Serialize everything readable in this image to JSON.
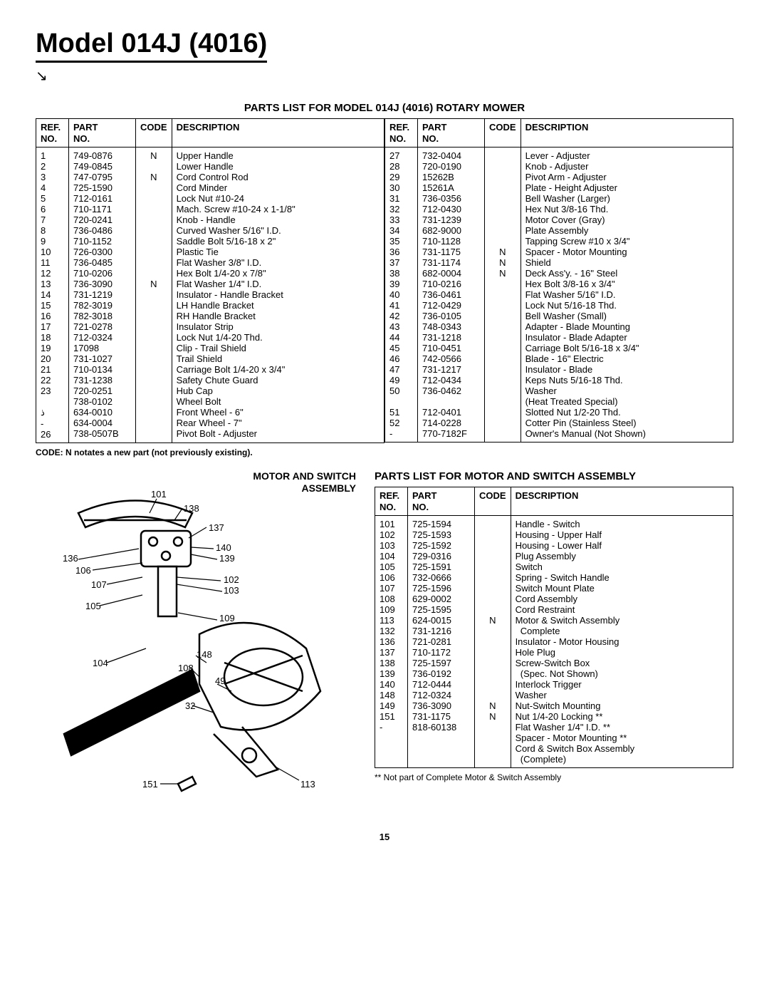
{
  "title": "Model 014J (4016)",
  "mainTableCaption": "PARTS LIST FOR MODEL 014J (4016) ROTARY MOWER",
  "headers": {
    "ref": "REF.\nNO.",
    "part": "PART\nNO.",
    "code": "CODE",
    "desc": "DESCRIPTION"
  },
  "mainLeft": [
    {
      "r": "1",
      "p": "749-0876",
      "c": "N",
      "d": "Upper Handle"
    },
    {
      "r": "2",
      "p": "749-0845",
      "c": "",
      "d": "Lower Handle"
    },
    {
      "r": "3",
      "p": "747-0795",
      "c": "N",
      "d": "Cord Control Rod"
    },
    {
      "r": "4",
      "p": "725-1590",
      "c": "",
      "d": "Cord Minder"
    },
    {
      "r": "5",
      "p": "712-0161",
      "c": "",
      "d": "Lock Nut #10-24"
    },
    {
      "r": "6",
      "p": "710-1171",
      "c": "",
      "d": "Mach. Screw #10-24 x 1-1/8\""
    },
    {
      "r": "7",
      "p": "720-0241",
      "c": "",
      "d": "Knob - Handle"
    },
    {
      "r": "8",
      "p": "736-0486",
      "c": "",
      "d": "Curved Washer 5/16\" I.D."
    },
    {
      "r": "9",
      "p": "710-1152",
      "c": "",
      "d": "Saddle Bolt 5/16-18 x 2\""
    },
    {
      "r": "10",
      "p": "726-0300",
      "c": "",
      "d": "Plastic Tie"
    },
    {
      "r": "11",
      "p": "736-0485",
      "c": "",
      "d": "Flat Washer 3/8\" I.D."
    },
    {
      "r": "12",
      "p": "710-0206",
      "c": "",
      "d": "Hex Bolt 1/4-20 x 7/8\""
    },
    {
      "r": "13",
      "p": "736-3090",
      "c": "N",
      "d": "Flat Washer 1/4\" I.D."
    },
    {
      "r": "14",
      "p": "731-1219",
      "c": "",
      "d": "Insulator - Handle Bracket"
    },
    {
      "r": "15",
      "p": "782-3019",
      "c": "",
      "d": "LH Handle Bracket"
    },
    {
      "r": "16",
      "p": "782-3018",
      "c": "",
      "d": "RH Handle Bracket"
    },
    {
      "r": "17",
      "p": "721-0278",
      "c": "",
      "d": "Insulator Strip"
    },
    {
      "r": "18",
      "p": "712-0324",
      "c": "",
      "d": "Lock Nut 1/4-20 Thd."
    },
    {
      "r": "19",
      "p": "17098",
      "c": "",
      "d": "Clip - Trail Shield"
    },
    {
      "r": "20",
      "p": "731-1027",
      "c": "",
      "d": "Trail Shield"
    },
    {
      "r": "21",
      "p": "710-0134",
      "c": "",
      "d": "Carriage Bolt 1/4-20 x 3/4\""
    },
    {
      "r": "22",
      "p": "731-1238",
      "c": "",
      "d": "Safety Chute Guard"
    },
    {
      "r": "23",
      "p": "720-0251",
      "c": "",
      "d": "Hub Cap"
    },
    {
      "r": "",
      "p": "738-0102",
      "c": "",
      "d": "Wheel Bolt"
    },
    {
      "r": "ذ",
      "p": "634-0010",
      "c": "",
      "d": "Front Wheel - 6\""
    },
    {
      "r": "-",
      "p": "634-0004",
      "c": "",
      "d": "Rear Wheel - 7\""
    },
    {
      "r": "26",
      "p": "738-0507B",
      "c": "",
      "d": "Pivot Bolt - Adjuster"
    }
  ],
  "mainRight": [
    {
      "r": "27",
      "p": "732-0404",
      "c": "",
      "d": "Lever - Adjuster"
    },
    {
      "r": "28",
      "p": "720-0190",
      "c": "",
      "d": "Knob - Adjuster"
    },
    {
      "r": "29",
      "p": "15262B",
      "c": "",
      "d": "Pivot Arm - Adjuster"
    },
    {
      "r": "30",
      "p": "15261A",
      "c": "",
      "d": "Plate - Height Adjuster"
    },
    {
      "r": "31",
      "p": "736-0356",
      "c": "",
      "d": "Bell Washer (Larger)"
    },
    {
      "r": "32",
      "p": "712-0430",
      "c": "",
      "d": "Hex Nut 3/8-16 Thd."
    },
    {
      "r": "33",
      "p": "731-1239",
      "c": "",
      "d": "Motor Cover (Gray)"
    },
    {
      "r": "34",
      "p": "682-9000",
      "c": "",
      "d": "Plate Assembly"
    },
    {
      "r": "35",
      "p": "710-1128",
      "c": "",
      "d": "Tapping Screw #10 x 3/4\""
    },
    {
      "r": "36",
      "p": "731-1175",
      "c": "N",
      "d": "Spacer - Motor Mounting"
    },
    {
      "r": "37",
      "p": "731-1174",
      "c": "N",
      "d": "Shield"
    },
    {
      "r": "38",
      "p": "682-0004",
      "c": "N",
      "d": "Deck Ass'y. - 16\" Steel"
    },
    {
      "r": "39",
      "p": "710-0216",
      "c": "",
      "d": "Hex Bolt 3/8-16 x 3/4\""
    },
    {
      "r": "40",
      "p": "736-0461",
      "c": "",
      "d": "Flat Washer 5/16\" I.D."
    },
    {
      "r": "41",
      "p": "712-0429",
      "c": "",
      "d": "Lock Nut 5/16-18 Thd."
    },
    {
      "r": "42",
      "p": "736-0105",
      "c": "",
      "d": "Bell Washer (Small)"
    },
    {
      "r": "43",
      "p": "748-0343",
      "c": "",
      "d": "Adapter - Blade Mounting"
    },
    {
      "r": "44",
      "p": "731-1218",
      "c": "",
      "d": "Insulator - Blade Adapter"
    },
    {
      "r": "45",
      "p": "710-0451",
      "c": "",
      "d": "Carriage Bolt 5/16-18 x 3/4\""
    },
    {
      "r": "46",
      "p": "742-0566",
      "c": "",
      "d": "Blade - 16\" Electric"
    },
    {
      "r": "47",
      "p": "731-1217",
      "c": "",
      "d": "Insulator - Blade"
    },
    {
      "r": "49",
      "p": "712-0434",
      "c": "",
      "d": "Keps Nuts 5/16-18 Thd."
    },
    {
      "r": "50",
      "p": "736-0462",
      "c": "",
      "d": "Washer"
    },
    {
      "r": "",
      "p": "",
      "c": "",
      "d": "(Heat Treated Special)"
    },
    {
      "r": "51",
      "p": "712-0401",
      "c": "",
      "d": "Slotted Nut 1/2-20 Thd."
    },
    {
      "r": "52",
      "p": "714-0228",
      "c": "",
      "d": "Cotter Pin (Stainless Steel)"
    },
    {
      "r": "-",
      "p": "770-7182F",
      "c": "",
      "d": "Owner's Manual (Not Shown)"
    }
  ],
  "codeNote": "CODE: N notates a new part (not previously existing).",
  "diagramTitle": "MOTOR AND SWITCH\nASSEMBLY",
  "switchTableCaption": "PARTS LIST FOR MOTOR AND SWITCH ASSEMBLY",
  "switchRows": [
    {
      "r": "101",
      "p": "725-1594",
      "c": "",
      "d": "Handle - Switch"
    },
    {
      "r": "102",
      "p": "725-1593",
      "c": "",
      "d": "Housing - Upper Half"
    },
    {
      "r": "103",
      "p": "725-1592",
      "c": "",
      "d": "Housing - Lower Half"
    },
    {
      "r": "104",
      "p": "729-0316",
      "c": "",
      "d": "Plug Assembly"
    },
    {
      "r": "105",
      "p": "725-1591",
      "c": "",
      "d": "Switch"
    },
    {
      "r": "106",
      "p": "732-0666",
      "c": "",
      "d": "Spring - Switch Handle"
    },
    {
      "r": "107",
      "p": "725-1596",
      "c": "",
      "d": "Switch Mount Plate"
    },
    {
      "r": "108",
      "p": "629-0002",
      "c": "",
      "d": "Cord Assembly"
    },
    {
      "r": "109",
      "p": "725-1595",
      "c": "",
      "d": "Cord Restraint"
    },
    {
      "r": "113",
      "p": "624-0015",
      "c": "N",
      "d": "Motor & Switch Assembly\n  Complete"
    },
    {
      "r": "132",
      "p": "731-1216",
      "c": "",
      "d": "Insulator - Motor Housing"
    },
    {
      "r": "136",
      "p": "721-0281",
      "c": "",
      "d": "Hole Plug"
    },
    {
      "r": "137",
      "p": "710-1172",
      "c": "",
      "d": "Screw-Switch Box\n  (Spec. Not Shown)"
    },
    {
      "r": "138",
      "p": "725-1597",
      "c": "",
      "d": "Interlock Trigger"
    },
    {
      "r": "139",
      "p": "736-0192",
      "c": "",
      "d": "Washer"
    },
    {
      "r": "140",
      "p": "712-0444",
      "c": "",
      "d": "Nut-Switch Mounting"
    },
    {
      "r": "148",
      "p": "712-0324",
      "c": "",
      "d": "Nut 1/4-20 Locking **"
    },
    {
      "r": "149",
      "p": "736-3090",
      "c": "N",
      "d": "Flat Washer 1/4\" I.D. **"
    },
    {
      "r": "151",
      "p": "731-1175",
      "c": "N",
      "d": "Spacer - Motor Mounting **"
    },
    {
      "r": "-",
      "p": "818-60138",
      "c": "",
      "d": "Cord & Switch Box Assembly\n  (Complete)"
    }
  ],
  "footnote": "**  Not part of Complete Motor & Switch Assembly",
  "pageNum": "15",
  "diagramLabels": [
    "101",
    "138",
    "137",
    "140",
    "139",
    "102",
    "103",
    "109",
    "148",
    "108",
    "49",
    "32",
    "113",
    "151",
    "104",
    "105",
    "107",
    "106",
    "136"
  ]
}
